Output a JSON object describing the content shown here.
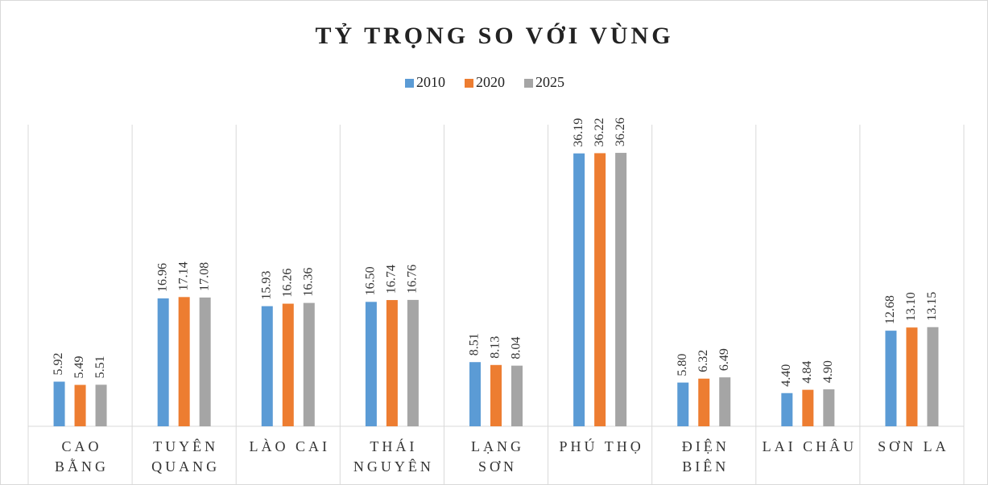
{
  "chart_data": {
    "type": "bar",
    "title": "TỶ TRỌNG SO VỚI VÙNG",
    "categories": [
      [
        "CAO",
        "BẰNG"
      ],
      [
        "TUYÊN",
        "QUANG"
      ],
      [
        "LÀO CAI"
      ],
      [
        "THÁI",
        "NGUYÊN"
      ],
      [
        "LẠNG",
        "SƠN"
      ],
      [
        "PHÚ THỌ"
      ],
      [
        "ĐIỆN",
        "BIÊN"
      ],
      [
        "LAI CHÂU"
      ],
      [
        "SƠN LA"
      ]
    ],
    "series": [
      {
        "name": "2010",
        "color": "#5b9bd5",
        "values": [
          5.92,
          16.96,
          15.93,
          16.5,
          8.51,
          36.19,
          5.8,
          4.4,
          12.68
        ],
        "value_labels": [
          "5.92",
          "16.96",
          "15.93",
          "16.50",
          "8.51",
          "36.19",
          "5.80",
          "4.40",
          "12.68"
        ]
      },
      {
        "name": "2020",
        "color": "#ed7d31",
        "values": [
          5.49,
          17.14,
          16.26,
          16.74,
          8.13,
          36.22,
          6.32,
          4.84,
          13.1
        ],
        "value_labels": [
          "5.49",
          "17.14",
          "16.26",
          "16.74",
          "8.13",
          "36.22",
          "6.32",
          "4.84",
          "13.10"
        ]
      },
      {
        "name": "2025",
        "color": "#a5a5a5",
        "values": [
          5.51,
          17.08,
          16.36,
          16.76,
          8.04,
          36.26,
          6.49,
          4.9,
          13.15
        ],
        "value_labels": [
          "5.51",
          "17.08",
          "16.36",
          "16.76",
          "8.04",
          "36.26",
          "6.49",
          "4.90",
          "13.15"
        ]
      }
    ],
    "ylim": [
      0,
      40
    ],
    "legend": "top"
  }
}
